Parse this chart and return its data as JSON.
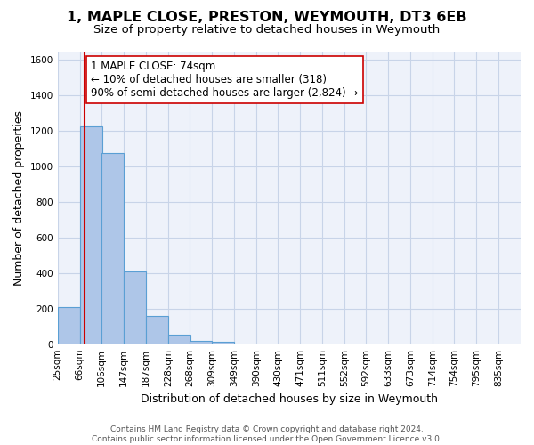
{
  "title": "1, MAPLE CLOSE, PRESTON, WEYMOUTH, DT3 6EB",
  "subtitle": "Size of property relative to detached houses in Weymouth",
  "xlabel": "Distribution of detached houses by size in Weymouth",
  "ylabel": "Number of detached properties",
  "footer_line1": "Contains HM Land Registry data © Crown copyright and database right 2024.",
  "footer_line2": "Contains public sector information licensed under the Open Government Licence v3.0.",
  "bin_labels": [
    "25sqm",
    "66sqm",
    "106sqm",
    "147sqm",
    "187sqm",
    "228sqm",
    "268sqm",
    "309sqm",
    "349sqm",
    "390sqm",
    "430sqm",
    "471sqm",
    "511sqm",
    "552sqm",
    "592sqm",
    "633sqm",
    "673sqm",
    "714sqm",
    "754sqm",
    "795sqm",
    "835sqm"
  ],
  "bin_values": [
    25,
    66,
    106,
    147,
    187,
    228,
    268,
    309,
    349,
    390,
    430,
    471,
    511,
    552,
    592,
    633,
    673,
    714,
    754,
    795,
    835
  ],
  "bar_heights": [
    207,
    1228,
    1075,
    410,
    160,
    52,
    20,
    15,
    0,
    0,
    0,
    0,
    0,
    0,
    0,
    0,
    0,
    0,
    0,
    0
  ],
  "bar_color": "#aec6e8",
  "bar_edge_color": "#5a9fd4",
  "property_line_x": 74,
  "property_line_color": "#cc0000",
  "annotation_text": "1 MAPLE CLOSE: 74sqm\n← 10% of detached houses are smaller (318)\n90% of semi-detached houses are larger (2,824) →",
  "annotation_box_color": "#ffffff",
  "annotation_box_edge_color": "#cc0000",
  "ylim": [
    0,
    1650
  ],
  "yticks": [
    0,
    200,
    400,
    600,
    800,
    1000,
    1200,
    1400,
    1600
  ],
  "bin_width": 41,
  "title_fontsize": 11.5,
  "subtitle_fontsize": 9.5,
  "axis_label_fontsize": 9,
  "tick_fontsize": 7.5,
  "annotation_fontsize": 8.5,
  "footer_fontsize": 6.5,
  "background_color": "#ffffff",
  "grid_color": "#c8d4e8",
  "axes_bg_color": "#eef2fa"
}
